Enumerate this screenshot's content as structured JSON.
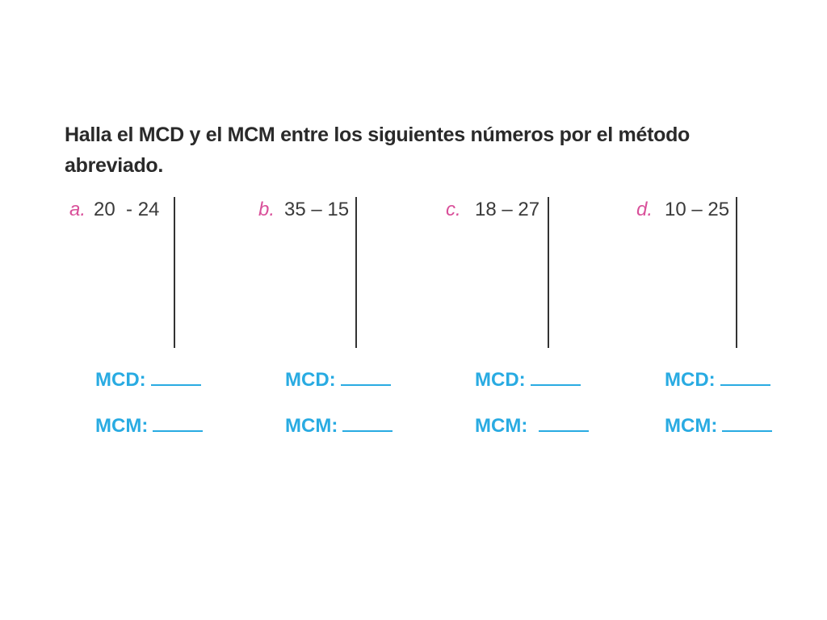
{
  "instruction": "Halla el MCD y el MCM entre los siguientes números por el método abreviado.",
  "exercises": [
    {
      "letter": "a.",
      "numbers": "20  - 24",
      "mcd_label": "MCD:",
      "mcm_label": "MCM:"
    },
    {
      "letter": "b.",
      "numbers": "35 – 15",
      "mcd_label": "MCD:",
      "mcm_label": "MCM:"
    },
    {
      "letter": "c.",
      "numbers": "18 – 27",
      "mcd_label": "MCD:",
      "mcm_label": "MCM:"
    },
    {
      "letter": "d.",
      "numbers": "10 – 25",
      "mcd_label": "MCD:",
      "mcm_label": "MCM:"
    }
  ],
  "colors": {
    "letter": "#d9509a",
    "answer": "#29abe2",
    "text": "#2a2a2a"
  }
}
